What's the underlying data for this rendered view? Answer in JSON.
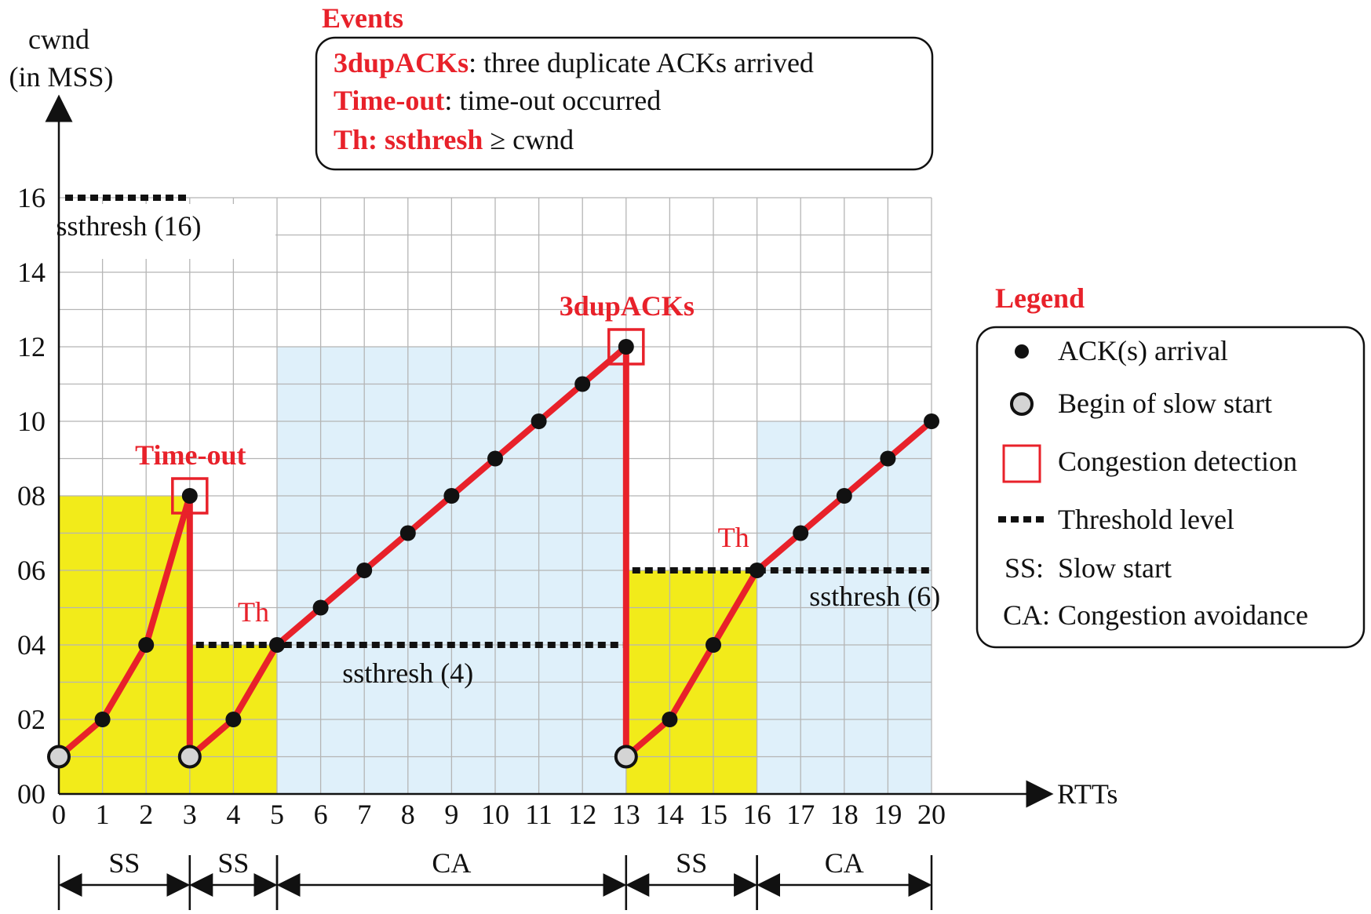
{
  "chart_data": {
    "type": "line",
    "ylabel_line1": "cwnd",
    "ylabel_line2": "(in MSS)",
    "xlabel": "RTTs",
    "x_ticks": [
      0,
      1,
      2,
      3,
      4,
      5,
      6,
      7,
      8,
      9,
      10,
      11,
      12,
      13,
      14,
      15,
      16,
      17,
      18,
      19,
      20
    ],
    "y_ticks": [
      "00",
      "02",
      "04",
      "06",
      "08",
      "10",
      "12",
      "14",
      "16"
    ],
    "y_tick_values": [
      0,
      2,
      4,
      6,
      8,
      10,
      12,
      14,
      16
    ],
    "xlim": [
      0,
      20
    ],
    "ylim": [
      0,
      16
    ],
    "grid": true,
    "cwnd_trace": [
      {
        "x": 0,
        "y": 1
      },
      {
        "x": 1,
        "y": 2
      },
      {
        "x": 2,
        "y": 4
      },
      {
        "x": 3,
        "y": 8
      },
      {
        "x": 3,
        "y": 1
      },
      {
        "x": 4,
        "y": 2
      },
      {
        "x": 5,
        "y": 4
      },
      {
        "x": 6,
        "y": 5
      },
      {
        "x": 7,
        "y": 6
      },
      {
        "x": 8,
        "y": 7
      },
      {
        "x": 9,
        "y": 8
      },
      {
        "x": 10,
        "y": 9
      },
      {
        "x": 11,
        "y": 10
      },
      {
        "x": 12,
        "y": 11
      },
      {
        "x": 13,
        "y": 12
      },
      {
        "x": 13,
        "y": 1
      },
      {
        "x": 14,
        "y": 2
      },
      {
        "x": 15,
        "y": 4
      },
      {
        "x": 16,
        "y": 6
      },
      {
        "x": 17,
        "y": 7
      },
      {
        "x": 18,
        "y": 8
      },
      {
        "x": 19,
        "y": 9
      },
      {
        "x": 20,
        "y": 10
      }
    ],
    "ack_points": [
      {
        "x": 1,
        "y": 2
      },
      {
        "x": 2,
        "y": 4
      },
      {
        "x": 3,
        "y": 8
      },
      {
        "x": 4,
        "y": 2
      },
      {
        "x": 5,
        "y": 4
      },
      {
        "x": 6,
        "y": 5
      },
      {
        "x": 7,
        "y": 6
      },
      {
        "x": 8,
        "y": 7
      },
      {
        "x": 9,
        "y": 8
      },
      {
        "x": 10,
        "y": 9
      },
      {
        "x": 11,
        "y": 10
      },
      {
        "x": 12,
        "y": 11
      },
      {
        "x": 13,
        "y": 12
      },
      {
        "x": 14,
        "y": 2
      },
      {
        "x": 15,
        "y": 4
      },
      {
        "x": 16,
        "y": 6
      },
      {
        "x": 17,
        "y": 7
      },
      {
        "x": 18,
        "y": 8
      },
      {
        "x": 19,
        "y": 9
      },
      {
        "x": 20,
        "y": 10
      }
    ],
    "slow_start_begin_points": [
      {
        "x": 0,
        "y": 1
      },
      {
        "x": 3,
        "y": 1
      },
      {
        "x": 13,
        "y": 1
      }
    ],
    "congestion_detections": [
      {
        "x": 3,
        "y": 8,
        "label": "Time-out"
      },
      {
        "x": 13,
        "y": 12,
        "label": "3dupACKs"
      }
    ],
    "thresholds": [
      {
        "x_start": 0,
        "x_end": 3,
        "y": 16,
        "label": "ssthresh (16)"
      },
      {
        "x_start": 3,
        "x_end": 13,
        "y": 4,
        "label": "ssthresh (4)"
      },
      {
        "x_start": 13,
        "x_end": 20,
        "y": 6,
        "label": "ssthresh (6)"
      }
    ],
    "th_markers": [
      {
        "x": 5,
        "y": 4,
        "label": "Th"
      },
      {
        "x": 16,
        "y": 6,
        "label": "Th"
      }
    ],
    "phase_regions": [
      {
        "x_start": 0,
        "x_end": 3,
        "y_top": 8,
        "phase": "SS",
        "color": "#f2eb1a"
      },
      {
        "x_start": 3,
        "x_end": 5,
        "y_top": 4,
        "phase": "SS",
        "color": "#f2eb1a"
      },
      {
        "x_start": 5,
        "x_end": 13,
        "y_top": 12,
        "phase": "CA",
        "color": "#dff0fa"
      },
      {
        "x_start": 13,
        "x_end": 16,
        "y_top": 6,
        "phase": "SS",
        "color": "#f2eb1a"
      },
      {
        "x_start": 16,
        "x_end": 20,
        "y_top": 10,
        "phase": "CA",
        "color": "#dff0fa"
      }
    ],
    "phase_spans": [
      {
        "x_start": 0,
        "x_end": 3,
        "label": "SS"
      },
      {
        "x_start": 3,
        "x_end": 5,
        "label": "SS"
      },
      {
        "x_start": 5,
        "x_end": 13,
        "label": "CA"
      },
      {
        "x_start": 13,
        "x_end": 16,
        "label": "SS"
      },
      {
        "x_start": 16,
        "x_end": 20,
        "label": "CA"
      }
    ],
    "events_box": {
      "title": "Events",
      "lines": [
        {
          "key": "3dupACKs",
          "text": ": three duplicate ACKs arrived"
        },
        {
          "key": "Time-out",
          "text": ": time-out occurred"
        },
        {
          "key": "Th: ssthresh",
          "text": " ≥  cwnd"
        }
      ]
    },
    "legend": {
      "title": "Legend",
      "placement": "right",
      "items": [
        {
          "marker": "black-dot",
          "label": "ACK(s) arrival"
        },
        {
          "marker": "gray-dot",
          "label": "Begin of slow start"
        },
        {
          "marker": "red-square",
          "label": "Congestion detection"
        },
        {
          "marker": "dashed-line",
          "label": "Threshold level"
        },
        {
          "marker": "text",
          "abbr": "SS:",
          "label": "Slow start"
        },
        {
          "marker": "text",
          "abbr": "CA:",
          "label": "Congestion avoidance"
        }
      ]
    },
    "colors": {
      "line": "#e8212a",
      "red_text": "#e8212a",
      "ss_fill": "#f2eb1a",
      "ca_fill": "#dff0fa",
      "grid": "#b5b5b5",
      "point": "#111111",
      "begin_point": "#d4d4d4"
    }
  }
}
